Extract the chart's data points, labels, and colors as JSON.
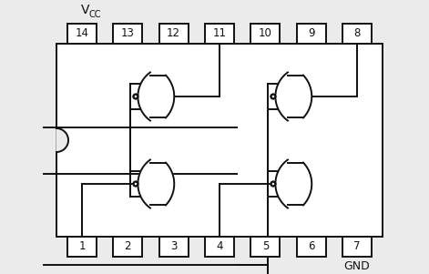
{
  "bg_color": "#ebebeb",
  "line_color": "#111111",
  "pin_box_color": "#ffffff",
  "ic_body_color": "#ffffff",
  "top_pins": [
    14,
    13,
    12,
    11,
    10,
    9,
    8
  ],
  "bot_pins": [
    1,
    2,
    3,
    4,
    5,
    6,
    7
  ],
  "vcc_label": "VCC",
  "gnd_label": "GND",
  "figsize": [
    4.71,
    3.01
  ],
  "dpi": 100
}
